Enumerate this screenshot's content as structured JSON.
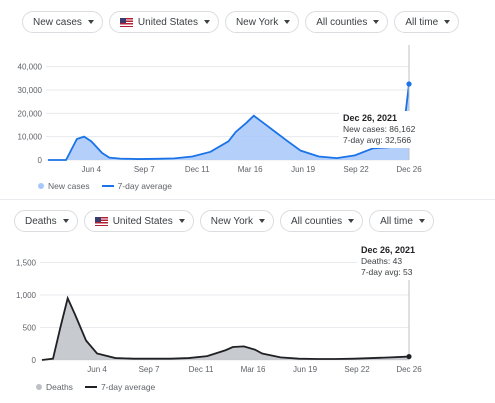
{
  "top": {
    "filters": {
      "metric": "New cases",
      "country": "United States",
      "region": "New York",
      "counties": "All counties",
      "range": "All time"
    },
    "tooltip": {
      "date": "Dec 26, 2021",
      "line1": "New cases: 86,162",
      "line2": "7-day avg: 32,566"
    },
    "legend": {
      "bars": "New cases",
      "line": "7-day average"
    },
    "colors": {
      "bars": "#a8c7fa",
      "line": "#1a73e8"
    }
  },
  "bottom": {
    "filters": {
      "metric": "Deaths",
      "country": "United States",
      "region": "New York",
      "counties": "All counties",
      "range": "All time"
    },
    "tooltip": {
      "date": "Dec 26, 2021",
      "line1": "Deaths: 43",
      "line2": "7-day avg: 53"
    },
    "legend": {
      "bars": "Deaths",
      "line": "7-day average"
    },
    "colors": {
      "bars": "#bdc1c6",
      "line": "#202124"
    }
  },
  "chart_data": [
    {
      "type": "area",
      "categories": [
        "Jun 4",
        "Sep 7",
        "Dec 11",
        "Mar 16",
        "Jun 19",
        "Sep 22",
        "Dec 26"
      ],
      "ylim": [
        0,
        45000
      ],
      "yticks": [
        "0",
        "10,000",
        "20,000",
        "30,000",
        "40,000"
      ],
      "ytick_values": [
        0,
        10000,
        20000,
        30000,
        40000
      ],
      "x": [
        0,
        0.05,
        0.08,
        0.1,
        0.12,
        0.15,
        0.17,
        0.2,
        0.25,
        0.3,
        0.35,
        0.4,
        0.45,
        0.5,
        0.52,
        0.55,
        0.57,
        0.6,
        0.63,
        0.66,
        0.7,
        0.75,
        0.8,
        0.85,
        0.9,
        0.95,
        0.98,
        1
      ],
      "series": [
        {
          "name": "7-day average",
          "values": [
            0,
            0,
            9000,
            10000,
            8000,
            3000,
            1000,
            600,
            400,
            500,
            700,
            1500,
            3500,
            8000,
            12000,
            16000,
            19000,
            15500,
            12000,
            8500,
            4000,
            1500,
            800,
            2000,
            5000,
            5500,
            6500,
            32566
          ]
        }
      ],
      "highlight": {
        "date": "Dec 26, 2021",
        "new_cases": 86162,
        "avg": 32566
      }
    },
    {
      "type": "area",
      "categories": [
        "Jun 4",
        "Sep 7",
        "Dec 11",
        "Mar 16",
        "Jun 19",
        "Sep 22",
        "Dec 26"
      ],
      "ylim": [
        0,
        1600
      ],
      "yticks": [
        "0",
        "500",
        "1,000",
        "1,500"
      ],
      "ytick_values": [
        0,
        500,
        1000,
        1500
      ],
      "x": [
        0,
        0.03,
        0.05,
        0.07,
        0.09,
        0.12,
        0.15,
        0.2,
        0.25,
        0.3,
        0.35,
        0.4,
        0.45,
        0.5,
        0.52,
        0.55,
        0.58,
        0.6,
        0.65,
        0.7,
        0.75,
        0.8,
        0.85,
        0.9,
        0.95,
        1
      ],
      "series": [
        {
          "name": "7-day average",
          "values": [
            0,
            20,
            500,
            950,
            700,
            300,
            100,
            30,
            20,
            20,
            20,
            30,
            60,
            150,
            200,
            210,
            160,
            100,
            40,
            20,
            15,
            15,
            20,
            30,
            40,
            53
          ]
        }
      ],
      "highlight": {
        "date": "Dec 26, 2021",
        "deaths": 43,
        "avg": 53
      }
    }
  ]
}
